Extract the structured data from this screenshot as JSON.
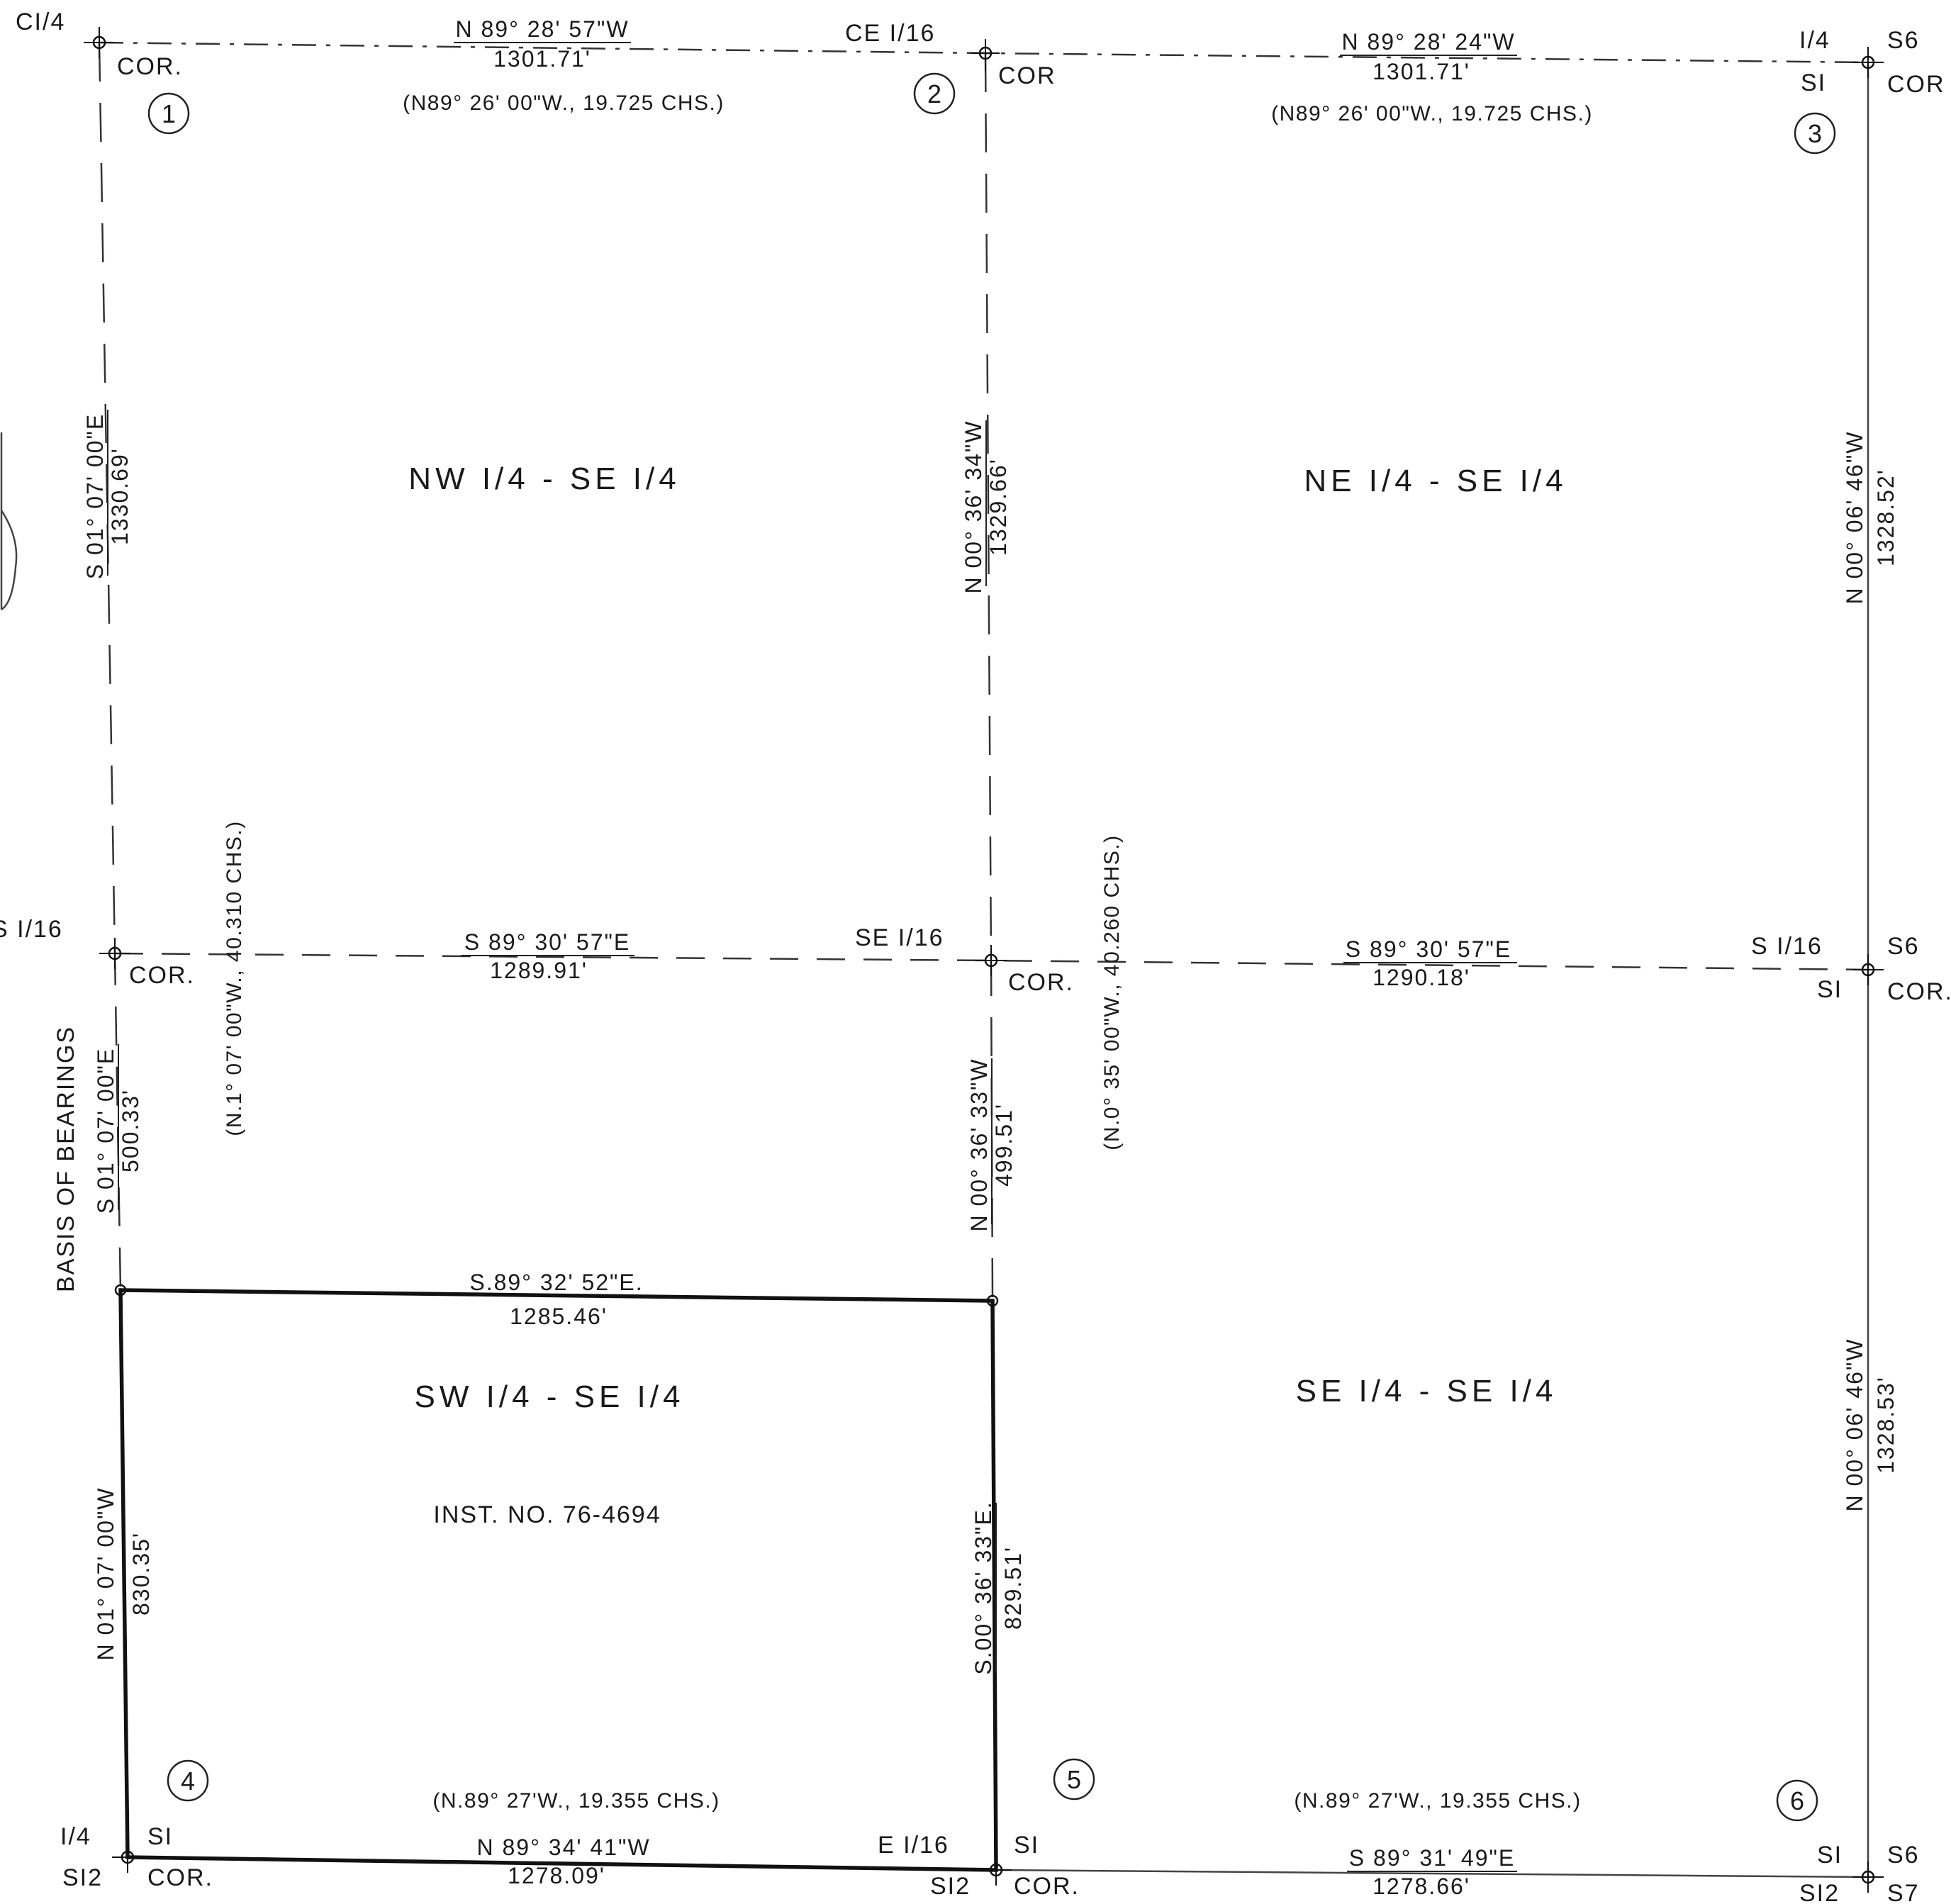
{
  "corners": {
    "c1_4": "CI/4",
    "cor": "COR.",
    "cor_nodot": "COR",
    "ce_1_16": "CE I/16",
    "q1_4": "I/4",
    "s6": "S6",
    "s1": "SI",
    "s_1_16_left": "S I/16",
    "se_1_16": "SE I/16",
    "s_1_16_right": "S I/16",
    "s1_q": "I/4",
    "s12": "SI2",
    "e_1_16": "E I/16",
    "s7": "S7"
  },
  "circled_numbers": [
    "1",
    "2",
    "3",
    "4",
    "5",
    "6"
  ],
  "quarter_labels": {
    "nw": "NW I/4 - SE I/4",
    "ne": "NE I/4 - SE I/4",
    "sw": "SW I/4 - SE I/4",
    "se": "SE I/4 - SE I/4"
  },
  "instrument": "INST. NO. 76-4694",
  "basis_of_bearings": "BASIS OF BEARINGS",
  "bearings": {
    "north_left": {
      "bearing": "N 89° 28' 57\"W",
      "distance": "1301.71'",
      "record": "(N89° 26' 00\"W., 19.725 CHS.)"
    },
    "north_right": {
      "bearing": "N 89° 28' 24\"W",
      "distance": "1301.71'",
      "record": "(N89° 26' 00\"W., 19.725 CHS.)"
    },
    "mid_left": {
      "bearing": "S 89° 30' 57\"E",
      "distance": "1289.91'"
    },
    "mid_right": {
      "bearing": "S 89° 30' 57\"E",
      "distance": "1290.18'"
    },
    "parcel_north": {
      "bearing": "S.89° 32' 52\"E.",
      "distance": "1285.46'"
    },
    "south_left": {
      "bearing": "N 89° 34' 41\"W",
      "distance": "1278.09'",
      "record": "(N.89° 27'W., 19.355 CHS.)"
    },
    "south_right": {
      "bearing": "S 89° 31' 49\"E",
      "distance": "1278.66'",
      "record": "(N.89° 27'W., 19.355 CHS.)"
    },
    "west_upper": {
      "bearing": "S 01° 07' 00\"E",
      "distance": "1330.69'"
    },
    "west_mid": {
      "bearing": "S 01° 07' 00\"E",
      "distance": "500.33'"
    },
    "west_lower": {
      "bearing": "N 01° 07' 00\"W",
      "distance": "830.35'"
    },
    "west_record": "(N.1° 07' 00\"W., 40.310 CHS.)",
    "center_upper": {
      "bearing": "N 00° 36' 34\"W",
      "distance": "1329.66'"
    },
    "center_mid": {
      "bearing": "N 00° 36' 33\"W",
      "distance": "499.51'"
    },
    "center_lower": {
      "bearing": "S.00° 36' 33\"E.",
      "distance": "829.51'"
    },
    "center_record": "(N.0° 35' 00\"W., 40.260 CHS.)",
    "east_upper": {
      "bearing": "N 00° 06' 46\"W",
      "distance": "1328.52'"
    },
    "east_lower": {
      "bearing": "N 00° 06' 46\"W",
      "distance": "1328.53'"
    }
  }
}
